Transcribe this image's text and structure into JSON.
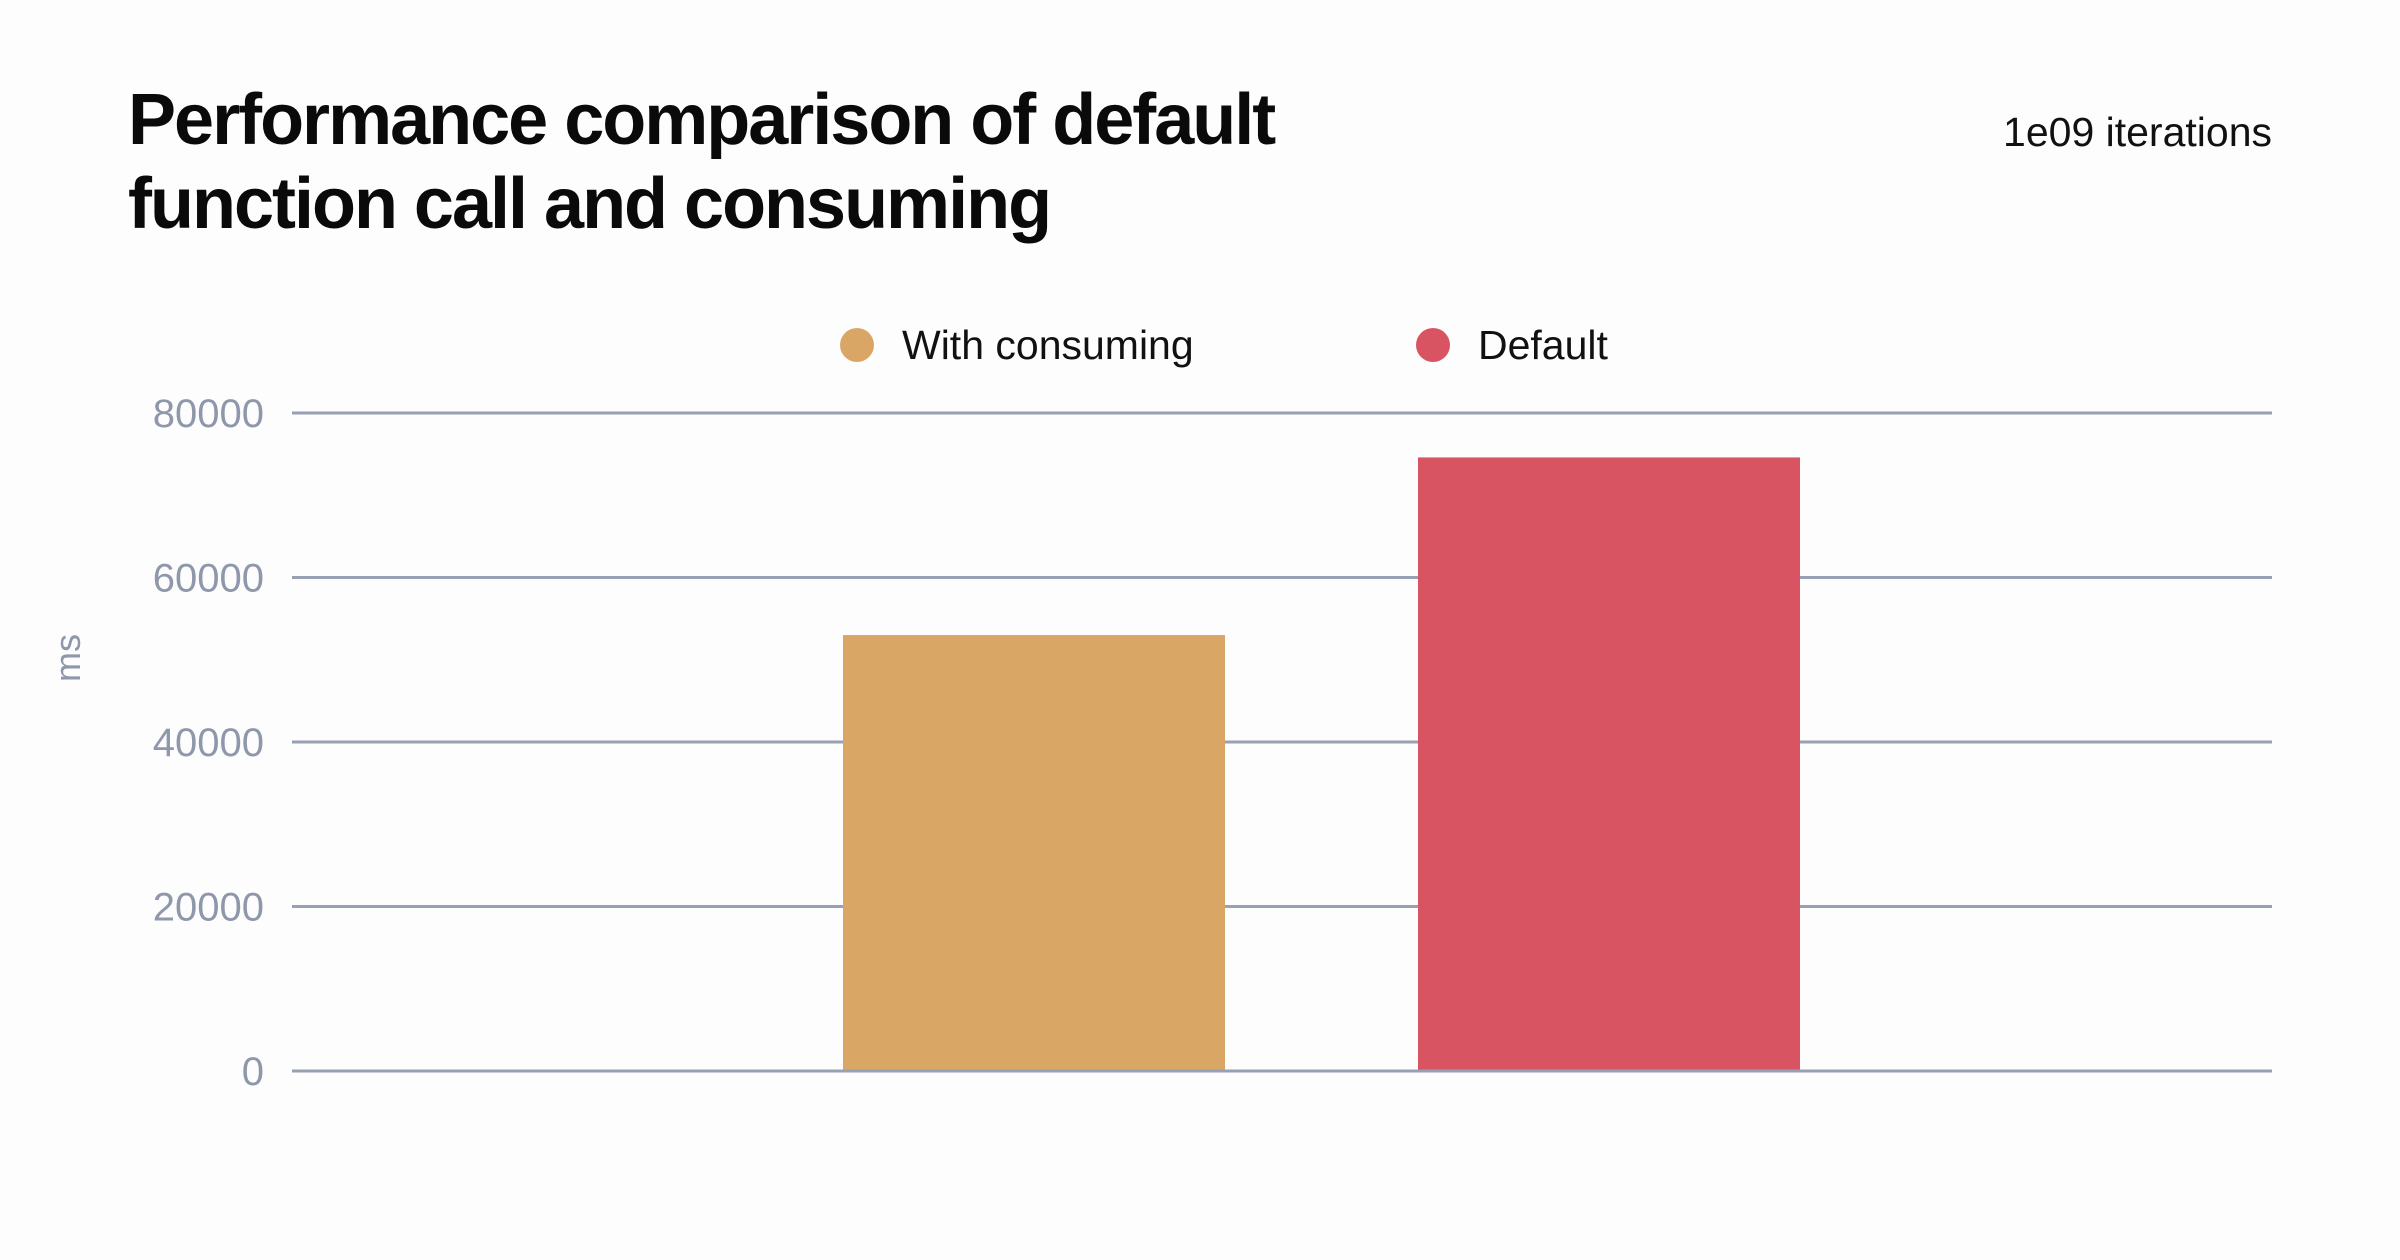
{
  "chart_data": {
    "type": "bar",
    "title": "Performance comparison of default function call and consuming",
    "subtitle": "1e09 iterations",
    "xlabel": "",
    "ylabel": "ms",
    "ylim": [
      0,
      80000
    ],
    "yticks": [
      "0",
      "20000",
      "40000",
      "60000",
      "80000"
    ],
    "grid": true,
    "legend_position": "top-center",
    "series": [
      {
        "name": "With consuming",
        "value": 53000,
        "color": "#d9a666"
      },
      {
        "name": "Default",
        "value": 74600,
        "color": "#d95462"
      }
    ]
  },
  "colors": {
    "grid": "#98a1b3",
    "tick_text": "#8f97ab",
    "title_text": "#0a0a0a",
    "background": "#fdfdfd"
  }
}
